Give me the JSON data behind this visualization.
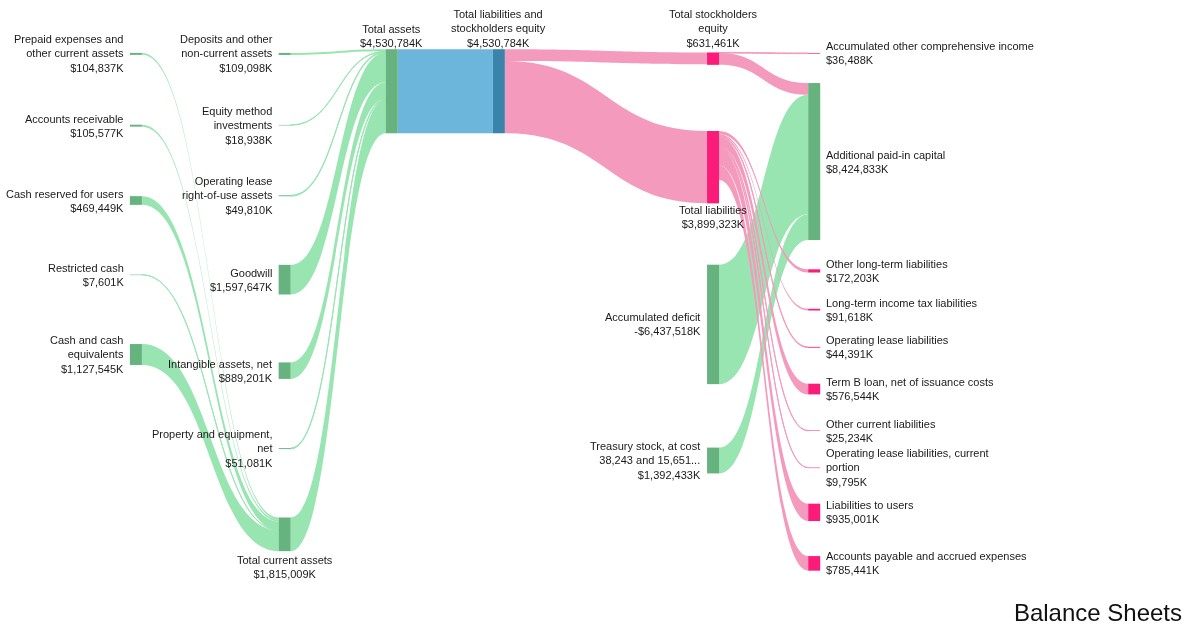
{
  "chart_data": {
    "type": "other",
    "title": "Balance Sheets",
    "categories": [
      "Prepaid expenses and other current assets",
      "Accounts receivable",
      "Cash reserved for users",
      "Restricted cash",
      "Cash and cash equivalents",
      "Deposits and other non-current assets",
      "Equity method investments",
      "Operating lease right-of-use assets",
      "Goodwill",
      "Intangible assets, net",
      "Property and equipment, net",
      "Total current assets",
      "Total assets",
      "Total liabilities and stockholders equity",
      "Total stockholders equity",
      "Total liabilities",
      "Accumulated deficit",
      "Treasury stock, at cost 38,243 and 15,651...",
      "Accumulated other comprehensive income",
      "Additional paid-in capital",
      "Other long-term liabilities",
      "Long-term income tax liabilities",
      "Operating lease liabilities",
      "Term B loan, net of issuance costs",
      "Other current liabilities",
      "Operating lease liabilities, current portion",
      "Liabilities to users",
      "Accounts payable and accrued expenses"
    ],
    "colors": [
      "#66b37f",
      "#66b37f",
      "#66b37f",
      "#66b37f",
      "#66b37f",
      "#66b37f",
      "#66b37f",
      "#66b37f",
      "#66b37f",
      "#66b37f",
      "#66b37f",
      "#66b37f",
      "#66b37f",
      "#3a84ab",
      "#fb1b79",
      "#fb1b79",
      "#66b37f",
      "#66b37f",
      "#fb1b79",
      "#66b37f",
      "#fb1b79",
      "#fb1b79",
      "#fb1b79",
      "#fb1b79",
      "#fb1b79",
      "#fb1b79",
      "#fb1b79",
      "#fb1b79"
    ],
    "series": [
      {
        "values": [
          104837,
          105577,
          469449,
          7601,
          1127545,
          null,
          null,
          null,
          null,
          null,
          null,
          1815009,
          null,
          null,
          null,
          null,
          null,
          null,
          null,
          null,
          null,
          null,
          null,
          null,
          null,
          null,
          null,
          null
        ],
        "value_labels": [
          "$104,837K",
          "$105,577K",
          "$469,449K",
          "$7,601K",
          "$1,127,545K",
          null,
          null,
          null,
          null,
          null,
          null,
          "$1,815,009K",
          null,
          null,
          null,
          null,
          null,
          null,
          null,
          null,
          null,
          null,
          null,
          null,
          null,
          null,
          null,
          null
        ],
        "colors": [
          "#98e5b2",
          "#98e5b2",
          "#98e5b2",
          "#98e5b2",
          "#98e5b2",
          null,
          null,
          null,
          null,
          null,
          null,
          null,
          null,
          null,
          null,
          null,
          null,
          null,
          null,
          null,
          null,
          null,
          null,
          null,
          null,
          null,
          null,
          null
        ]
      },
      {
        "values": [
          null,
          null,
          null,
          null,
          null,
          109098,
          18938,
          49810,
          1597647,
          889201,
          51081,
          null,
          4530784,
          null,
          null,
          null,
          null,
          null,
          null,
          null,
          null,
          null,
          null,
          null,
          null,
          null,
          null,
          null
        ],
        "value_labels": [
          null,
          null,
          null,
          null,
          null,
          "$109,098K",
          "$18,938K",
          "$49,810K",
          "$1,597,647K",
          "$889,201K",
          "$51,081K",
          null,
          "$4,530,784K",
          null,
          null,
          null,
          null,
          null,
          null,
          null,
          null,
          null,
          null,
          null,
          null,
          null,
          null,
          null
        ],
        "colors": [
          null,
          null,
          null,
          null,
          null,
          "#98e5b2",
          "#98e5b2",
          "#98e5b2",
          "#98e5b2",
          "#98e5b2",
          "#98e5b2",
          "#98e5b2",
          null,
          null,
          null,
          null,
          null,
          null,
          null,
          null,
          null,
          null,
          null,
          null,
          null,
          null,
          null,
          null
        ]
      },
      {
        "values": [
          null,
          null,
          null,
          null,
          null,
          null,
          null,
          null,
          null,
          null,
          null,
          null,
          null,
          4530784,
          null,
          null,
          null,
          null,
          null,
          null,
          null,
          null,
          null,
          null,
          null,
          null,
          null,
          null
        ],
        "value_labels": [
          null,
          null,
          null,
          null,
          null,
          null,
          null,
          null,
          null,
          null,
          null,
          null,
          null,
          "$4,530,784K",
          null,
          null,
          null,
          null,
          null,
          null,
          null,
          null,
          null,
          null,
          null,
          null,
          null,
          null
        ],
        "colors": [
          null,
          null,
          null,
          null,
          null,
          null,
          null,
          null,
          null,
          null,
          null,
          null,
          "#6cb6dc",
          null,
          "#f49bbd",
          "#f49bbd",
          null,
          null,
          null,
          null,
          null,
          null,
          null,
          null,
          null,
          null,
          null,
          null
        ]
      },
      {
        "values": [
          null,
          null,
          null,
          null,
          null,
          null,
          null,
          null,
          null,
          null,
          null,
          null,
          null,
          null,
          631461,
          null,
          null,
          null,
          36488,
          null,
          null,
          null,
          null,
          null,
          null,
          null,
          null,
          null
        ],
        "value_labels": [
          null,
          null,
          null,
          null,
          null,
          null,
          null,
          null,
          null,
          null,
          null,
          null,
          null,
          null,
          "$631,461K",
          null,
          null,
          null,
          "$36,488K",
          null,
          null,
          null,
          null,
          null,
          null,
          null,
          null,
          null
        ],
        "colors": [
          null,
          null,
          null,
          null,
          null,
          null,
          null,
          null,
          null,
          null,
          null,
          null,
          null,
          null,
          null,
          null,
          null,
          null,
          "#f49bbd",
          null,
          null,
          null,
          null,
          null,
          null,
          null,
          null,
          null
        ]
      },
      {
        "values": [
          null,
          null,
          null,
          null,
          null,
          null,
          null,
          null,
          null,
          null,
          null,
          null,
          null,
          null,
          null,
          null,
          -6437518,
          1392433,
          null,
          8424833,
          null,
          null,
          null,
          null,
          null,
          null,
          null,
          null
        ],
        "value_labels": [
          null,
          null,
          null,
          null,
          null,
          null,
          null,
          null,
          null,
          null,
          null,
          null,
          null,
          null,
          null,
          null,
          "-$6,437,518K",
          "$1,392,433K",
          null,
          "$8,424,833K",
          null,
          null,
          null,
          null,
          null,
          null,
          null,
          null
        ],
        "colors": [
          null,
          null,
          null,
          null,
          null,
          null,
          null,
          null,
          null,
          null,
          null,
          null,
          null,
          null,
          "#f49bbd",
          null,
          "#98e5b2",
          "#98e5b2",
          null,
          null,
          null,
          null,
          null,
          null,
          null,
          null,
          null,
          null
        ]
      },
      {
        "values": [
          null,
          null,
          null,
          null,
          null,
          null,
          null,
          null,
          null,
          null,
          null,
          null,
          null,
          null,
          null,
          3899323,
          null,
          null,
          null,
          null,
          172203,
          91618,
          44391,
          576544,
          25234,
          9795,
          935001,
          785441
        ],
        "value_labels": [
          null,
          null,
          null,
          null,
          null,
          null,
          null,
          null,
          null,
          null,
          null,
          null,
          null,
          null,
          null,
          "$3,899,323K",
          null,
          null,
          null,
          null,
          "$172,203K",
          "$91,618K",
          "$44,391K",
          "$576,544K",
          "$25,234K",
          "$9,795K",
          "$935,001K",
          "$785,441K"
        ],
        "colors": [
          null,
          null,
          null,
          null,
          null,
          null,
          null,
          null,
          null,
          null,
          null,
          null,
          null,
          null,
          null,
          null,
          null,
          null,
          null,
          null,
          "#f49bbd",
          "#f49bbd",
          "#f49bbd",
          "#f49bbd",
          "#f49bbd",
          "#f49bbd",
          "#f49bbd",
          "#f49bbd"
        ]
      }
    ]
  }
}
